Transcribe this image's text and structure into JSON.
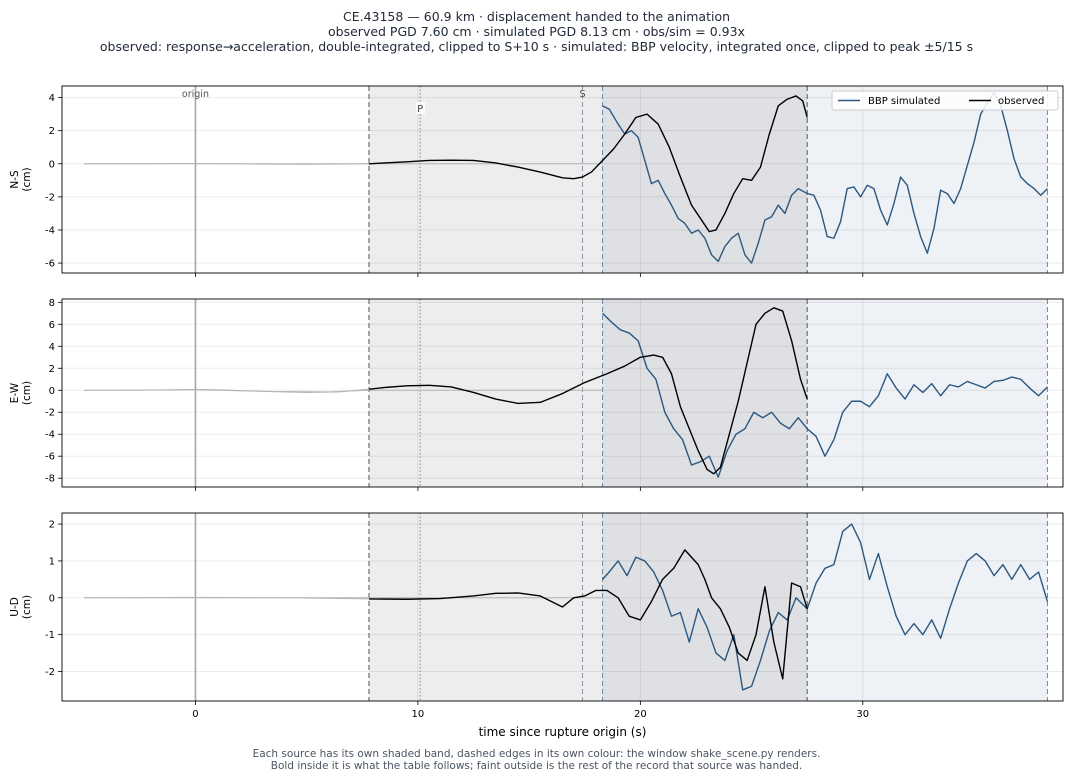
{
  "title_lines": [
    "CE.43158  —  60.9 km   ·   displacement handed to the animation",
    "observed PGD 7.60 cm   ·   simulated PGD 8.13 cm   ·   obs/sim = 0.93x",
    "observed: response→acceleration, double-integrated, clipped to S+10 s   ·   simulated: BBP velocity, integrated once, clipped to peak ±5/15 s"
  ],
  "footer_lines": [
    "Each source has its own shaded band, dashed edges in its own colour: the window shake_scene.py renders.",
    "Bold inside it is what the table follows;   faint outside is the rest of the record that source was handed."
  ],
  "colors": {
    "observed": "#000000",
    "simulated": "#2c5880",
    "faint": "#b5b5b5",
    "origin_line": "#9aaab8",
    "obs_band": "#ededed",
    "sim_band": "#eef1f5",
    "overlap_band": "#dfe0e4"
  },
  "chart_data": {
    "type": "line",
    "xlabel": "time since rupture origin (s)",
    "xlim": [
      -6,
      39
    ],
    "xticks": [
      0,
      10,
      20,
      30
    ],
    "grid": true,
    "legend_placement": "top-right",
    "legend": [
      "BBP simulated",
      "observed"
    ],
    "markers": [
      {
        "label": "origin",
        "t": 0
      },
      {
        "label": "P",
        "t": 10.1
      },
      {
        "label": "S",
        "t": 17.4
      }
    ],
    "windows": {
      "observed": [
        7.8,
        27.5
      ],
      "simulated": [
        18.3,
        38.3
      ]
    },
    "panels": [
      {
        "ylabel": "N-S\n(cm)",
        "ylim": [
          -6.6,
          4.7
        ],
        "yticks": [
          -6,
          -4,
          -2,
          0,
          2,
          4
        ],
        "observed": {
          "x": [
            -5,
            -3,
            -1,
            0,
            1,
            3,
            5,
            7,
            7.8,
            8.5,
            9.5,
            10.5,
            11.5,
            12.5,
            13.5,
            14.5,
            15.5,
            16.5,
            17.0,
            17.4,
            17.8,
            18.3,
            18.8,
            19.3,
            19.8,
            20.3,
            20.8,
            21.3,
            21.8,
            22.3,
            22.8,
            23.1,
            23.4,
            23.8,
            24.2,
            24.6,
            25.0,
            25.4,
            25.8,
            26.2,
            26.6,
            27.0,
            27.3,
            27.5
          ],
          "y": [
            0,
            0,
            0.02,
            0.02,
            0.01,
            -0.02,
            -0.03,
            -0.01,
            0,
            0.05,
            0.12,
            0.2,
            0.22,
            0.2,
            0.05,
            -0.2,
            -0.5,
            -0.85,
            -0.9,
            -0.8,
            -0.5,
            0.2,
            0.9,
            1.8,
            2.8,
            3.0,
            2.4,
            1.0,
            -0.8,
            -2.5,
            -3.5,
            -4.1,
            -4.0,
            -3.0,
            -1.8,
            -0.9,
            -1.0,
            -0.2,
            1.8,
            3.5,
            3.9,
            4.1,
            3.8,
            2.8
          ]
        },
        "simulated": {
          "x": [
            18.3,
            18.6,
            19.0,
            19.3,
            19.6,
            19.9,
            20.2,
            20.5,
            20.8,
            21.1,
            21.4,
            21.7,
            22.0,
            22.3,
            22.6,
            22.9,
            23.2,
            23.5,
            23.8,
            24.1,
            24.4,
            24.7,
            25.0,
            25.3,
            25.6,
            25.9,
            26.2,
            26.5,
            26.8,
            27.1,
            27.5,
            27.8,
            28.1,
            28.4,
            28.7,
            29.0,
            29.3,
            29.6,
            29.9,
            30.2,
            30.5,
            30.8,
            31.1,
            31.4,
            31.7,
            32.0,
            32.3,
            32.6,
            32.9,
            33.2,
            33.5,
            33.8,
            34.1,
            34.4,
            34.7,
            35.0,
            35.3,
            35.6,
            35.9,
            36.2,
            36.5,
            36.8,
            37.1,
            37.4,
            37.7,
            38.0,
            38.3
          ],
          "y": [
            3.5,
            3.3,
            2.4,
            1.8,
            2.0,
            1.6,
            0.2,
            -1.2,
            -1.0,
            -1.8,
            -2.5,
            -3.3,
            -3.6,
            -4.2,
            -4.0,
            -4.5,
            -5.5,
            -5.9,
            -5.0,
            -4.5,
            -4.2,
            -5.5,
            -6.0,
            -4.8,
            -3.4,
            -3.2,
            -2.5,
            -3.0,
            -1.9,
            -1.5,
            -1.8,
            -1.9,
            -2.8,
            -4.4,
            -4.5,
            -3.5,
            -1.5,
            -1.4,
            -2.0,
            -1.3,
            -1.5,
            -2.8,
            -3.7,
            -2.4,
            -0.8,
            -1.3,
            -3.0,
            -4.4,
            -5.4,
            -3.9,
            -1.6,
            -1.8,
            -2.4,
            -1.5,
            -0.1,
            1.3,
            3.0,
            3.7,
            4.3,
            3.5,
            2.0,
            0.3,
            -0.8,
            -1.2,
            -1.5,
            -1.9,
            -1.5
          ]
        },
        "simulated_faint_prefix": {
          "x": [
            -5,
            0,
            4,
            7,
            7.8,
            10,
            14,
            18.3
          ],
          "y": [
            0,
            0,
            0,
            0,
            0,
            0,
            0,
            0
          ]
        }
      },
      {
        "ylabel": "E-W\n(cm)",
        "ylim": [
          -8.8,
          8.3
        ],
        "yticks": [
          -8,
          -6,
          -4,
          -2,
          0,
          2,
          4,
          6,
          8
        ],
        "observed": {
          "x": [
            -5,
            -3,
            -1,
            0,
            1,
            3,
            5,
            6.5,
            7.8,
            8.5,
            9.5,
            10.5,
            11.5,
            12.5,
            13.5,
            14.5,
            15.5,
            16.5,
            17.5,
            18.5,
            19.3,
            20.0,
            20.6,
            21.0,
            21.4,
            21.8,
            22.2,
            22.6,
            23.0,
            23.3,
            23.6,
            24.0,
            24.4,
            24.8,
            25.2,
            25.6,
            26.0,
            26.4,
            26.8,
            27.2,
            27.5
          ],
          "y": [
            0,
            0,
            0.05,
            0.08,
            0.05,
            -0.1,
            -0.2,
            -0.15,
            0.1,
            0.25,
            0.4,
            0.45,
            0.3,
            -0.2,
            -0.8,
            -1.2,
            -1.1,
            -0.3,
            0.7,
            1.5,
            2.2,
            3.0,
            3.2,
            3.0,
            1.5,
            -1.5,
            -3.5,
            -5.5,
            -7.2,
            -7.6,
            -7.0,
            -4.0,
            -1.0,
            2.5,
            6.0,
            7.0,
            7.5,
            7.2,
            4.5,
            1.0,
            -0.8
          ]
        },
        "simulated": {
          "x": [
            18.3,
            18.7,
            19.1,
            19.5,
            19.9,
            20.3,
            20.7,
            21.1,
            21.5,
            21.9,
            22.3,
            22.7,
            23.1,
            23.5,
            23.9,
            24.3,
            24.7,
            25.1,
            25.5,
            25.9,
            26.3,
            26.7,
            27.1,
            27.5,
            27.9,
            28.3,
            28.7,
            29.1,
            29.5,
            29.9,
            30.3,
            30.7,
            31.1,
            31.5,
            31.9,
            32.3,
            32.7,
            33.1,
            33.5,
            33.9,
            34.3,
            34.7,
            35.1,
            35.5,
            35.9,
            36.3,
            36.7,
            37.1,
            37.5,
            37.9,
            38.3
          ],
          "y": [
            7.0,
            6.2,
            5.5,
            5.2,
            4.5,
            2.0,
            1.0,
            -2.0,
            -3.5,
            -4.5,
            -6.8,
            -6.5,
            -6.0,
            -7.9,
            -5.5,
            -4.0,
            -3.5,
            -2.0,
            -2.5,
            -2.0,
            -3.0,
            -3.5,
            -2.5,
            -3.5,
            -4.2,
            -6.0,
            -4.5,
            -2.0,
            -1.0,
            -1.0,
            -1.5,
            -0.5,
            1.5,
            0.2,
            -0.8,
            0.5,
            -0.2,
            0.6,
            -0.5,
            0.5,
            0.3,
            0.8,
            0.5,
            0.2,
            0.8,
            0.9,
            1.2,
            1.0,
            0.2,
            -0.5,
            0.3
          ]
        },
        "simulated_faint_prefix": {
          "x": [
            -5,
            -1,
            0,
            3,
            6,
            7.8,
            10,
            14,
            18.3
          ],
          "y": [
            0,
            0.02,
            0.05,
            -0.1,
            -0.15,
            0,
            0,
            0,
            0
          ]
        }
      },
      {
        "ylabel": "U-D\n(cm)",
        "ylim": [
          -2.8,
          2.3
        ],
        "yticks": [
          -2,
          -1,
          0,
          1,
          2
        ],
        "observed": {
          "x": [
            -5,
            0,
            4,
            7.8,
            9.5,
            11.0,
            12.5,
            13.5,
            14.5,
            15.5,
            16.5,
            17.0,
            17.5,
            18.0,
            18.5,
            19.0,
            19.5,
            20.0,
            20.5,
            21.0,
            21.5,
            22.0,
            22.3,
            22.6,
            22.9,
            23.2,
            23.6,
            24.0,
            24.4,
            24.8,
            25.2,
            25.6,
            26.0,
            26.4,
            26.8,
            27.2,
            27.5
          ],
          "y": [
            0,
            0.01,
            0,
            -0.03,
            -0.04,
            -0.02,
            0.05,
            0.12,
            0.13,
            0.05,
            -0.25,
            0.0,
            0.05,
            0.2,
            0.2,
            0.0,
            -0.5,
            -0.6,
            -0.1,
            0.5,
            0.8,
            1.3,
            1.1,
            0.9,
            0.5,
            0.0,
            -0.3,
            -0.8,
            -1.5,
            -1.7,
            -1.0,
            0.3,
            -1.2,
            -2.2,
            0.4,
            0.3,
            -0.3
          ]
        },
        "simulated": {
          "x": [
            18.3,
            18.6,
            19.0,
            19.4,
            19.8,
            20.2,
            20.6,
            21.0,
            21.4,
            21.8,
            22.2,
            22.6,
            23.0,
            23.4,
            23.8,
            24.2,
            24.6,
            25.0,
            25.4,
            25.8,
            26.2,
            26.6,
            27.0,
            27.5,
            27.9,
            28.3,
            28.7,
            29.1,
            29.5,
            29.9,
            30.3,
            30.7,
            31.1,
            31.5,
            31.9,
            32.3,
            32.7,
            33.1,
            33.5,
            33.9,
            34.3,
            34.7,
            35.1,
            35.5,
            35.9,
            36.3,
            36.7,
            37.1,
            37.5,
            37.9,
            38.3
          ],
          "y": [
            0.5,
            0.7,
            1.0,
            0.6,
            1.1,
            1.0,
            0.7,
            0.2,
            -0.5,
            -0.4,
            -1.2,
            -0.3,
            -0.8,
            -1.5,
            -1.7,
            -1.0,
            -2.5,
            -2.4,
            -1.7,
            -0.9,
            -0.4,
            -0.6,
            0.0,
            -0.3,
            0.4,
            0.8,
            0.9,
            1.8,
            2.0,
            1.5,
            0.5,
            1.2,
            0.3,
            -0.5,
            -1.0,
            -0.7,
            -1.0,
            -0.6,
            -1.1,
            -0.3,
            0.4,
            1.0,
            1.2,
            1.0,
            0.6,
            0.9,
            0.5,
            0.9,
            0.5,
            0.7,
            -0.1
          ]
        },
        "simulated_faint_prefix": {
          "x": [
            -5,
            0,
            4,
            7.8,
            10,
            14,
            18.3
          ],
          "y": [
            0,
            0,
            0,
            0,
            0,
            0,
            0
          ]
        }
      }
    ]
  }
}
